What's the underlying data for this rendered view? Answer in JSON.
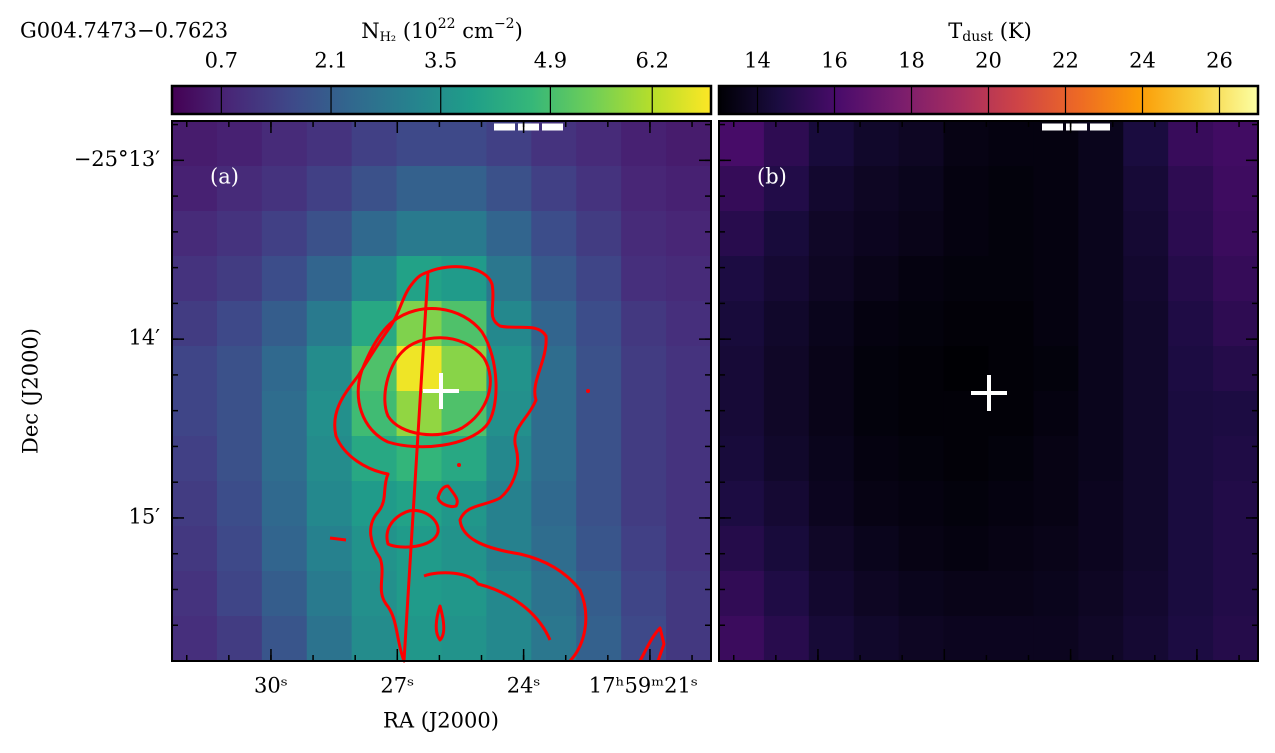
{
  "chart_data": [
    {
      "type": "heatmap",
      "title": "G004.7473−0.7623",
      "panel_label": "(a)",
      "colormap": "viridis",
      "colorbar": {
        "label_parts": [
          "N",
          "H₂",
          " (10",
          "22",
          " cm",
          "−2",
          ")"
        ],
        "clim": [
          0.07,
          6.95
        ],
        "ticks": [
          0.7,
          2.1,
          3.5,
          4.9,
          6.2
        ]
      },
      "xlabel": "RA (J2000)",
      "ylabel": "Dec (J2000)",
      "xlim": [
        32.35,
        19.55
      ],
      "xticks": [
        {
          "value": 30,
          "label": "30ˢ"
        },
        {
          "value": 27,
          "label": "27ˢ"
        },
        {
          "value": 24,
          "label": "24ˢ"
        },
        {
          "value": 21,
          "label": "17ʰ59ᵐ21ˢ"
        }
      ],
      "ylim": [
        15.8,
        12.78
      ],
      "yticks": [
        {
          "value": 13,
          "label": "−25°13′"
        },
        {
          "value": 14,
          "label": "14′"
        },
        {
          "value": 15,
          "label": "15′"
        }
      ],
      "values": [
        [
          0.6,
          0.7,
          0.9,
          1.1,
          1.4,
          1.6,
          1.6,
          1.4,
          1.1,
          0.9,
          0.7,
          0.6
        ],
        [
          0.7,
          0.9,
          1.1,
          1.4,
          1.8,
          2.2,
          2.2,
          1.8,
          1.4,
          1.1,
          0.8,
          0.7
        ],
        [
          0.9,
          1.1,
          1.4,
          1.8,
          2.4,
          2.9,
          2.9,
          2.3,
          1.7,
          1.3,
          0.9,
          0.8
        ],
        [
          1.1,
          1.3,
          1.7,
          2.3,
          3.2,
          4.0,
          3.8,
          2.8,
          2.0,
          1.5,
          1.0,
          0.9
        ],
        [
          1.3,
          1.6,
          2.1,
          2.9,
          4.2,
          5.6,
          5.0,
          3.3,
          2.3,
          1.7,
          1.2,
          1.0
        ],
        [
          1.5,
          1.8,
          2.4,
          3.4,
          5.0,
          6.8,
          5.7,
          3.6,
          2.5,
          1.8,
          1.3,
          1.1
        ],
        [
          1.5,
          1.8,
          2.5,
          3.5,
          4.8,
          5.8,
          5.0,
          3.5,
          2.5,
          1.8,
          1.3,
          1.1
        ],
        [
          1.4,
          1.8,
          2.5,
          3.4,
          4.2,
          4.6,
          4.2,
          3.3,
          2.5,
          1.8,
          1.3,
          1.1
        ],
        [
          1.3,
          1.7,
          2.4,
          3.3,
          3.8,
          4.0,
          3.7,
          3.1,
          2.4,
          1.8,
          1.3,
          1.1
        ],
        [
          1.2,
          1.6,
          2.3,
          3.1,
          3.6,
          3.8,
          3.6,
          3.1,
          2.5,
          1.9,
          1.4,
          1.1
        ],
        [
          1.1,
          1.5,
          2.1,
          2.9,
          3.5,
          3.8,
          3.7,
          3.3,
          2.7,
          2.1,
          1.5,
          1.2
        ],
        [
          1.0,
          1.3,
          1.9,
          2.7,
          3.4,
          3.7,
          3.6,
          3.3,
          2.8,
          2.2,
          1.6,
          1.2
        ]
      ]
    },
    {
      "type": "heatmap",
      "panel_label": "(b)",
      "colormap": "inferno",
      "colorbar": {
        "label_parts": [
          "T",
          "dust",
          " (K)"
        ],
        "clim": [
          13,
          27
        ],
        "ticks": [
          14,
          16,
          18,
          20,
          22,
          24,
          26
        ]
      },
      "xlim": [
        32.35,
        19.55
      ],
      "xticks": [
        30,
        27,
        24,
        21
      ],
      "ylim": [
        15.8,
        12.78
      ],
      "yticks": [
        13,
        14,
        15
      ],
      "show_tick_labels": false,
      "values": [
        [
          16.0,
          15.2,
          14.4,
          14.0,
          13.8,
          13.4,
          13.3,
          13.3,
          13.6,
          14.5,
          15.5,
          15.8
        ],
        [
          15.4,
          14.8,
          14.1,
          13.8,
          13.6,
          13.3,
          13.2,
          13.3,
          13.6,
          14.3,
          15.2,
          15.7
        ],
        [
          15.0,
          14.4,
          13.9,
          13.7,
          13.5,
          13.3,
          13.2,
          13.3,
          13.6,
          14.2,
          15.1,
          15.6
        ],
        [
          14.6,
          14.2,
          13.8,
          13.5,
          13.3,
          13.2,
          13.2,
          13.3,
          13.6,
          14.1,
          14.9,
          15.4
        ],
        [
          14.4,
          14.0,
          13.6,
          13.3,
          13.2,
          13.1,
          13.1,
          13.3,
          13.6,
          14.0,
          14.7,
          15.2
        ],
        [
          14.3,
          13.9,
          13.5,
          13.2,
          13.1,
          13.0,
          13.1,
          13.2,
          13.6,
          14.0,
          14.6,
          14.9
        ],
        [
          14.3,
          13.9,
          13.5,
          13.2,
          13.1,
          13.1,
          13.1,
          13.3,
          13.6,
          14.0,
          14.5,
          14.6
        ],
        [
          14.4,
          14.0,
          13.6,
          13.3,
          13.2,
          13.1,
          13.2,
          13.4,
          13.6,
          14.0,
          14.5,
          14.7
        ],
        [
          14.6,
          14.2,
          13.7,
          13.4,
          13.3,
          13.2,
          13.3,
          13.4,
          13.7,
          14.0,
          14.5,
          14.8
        ],
        [
          14.9,
          14.4,
          13.9,
          13.6,
          13.4,
          13.3,
          13.4,
          13.5,
          13.7,
          14.0,
          14.5,
          14.8
        ],
        [
          15.3,
          14.7,
          14.1,
          13.8,
          13.6,
          13.5,
          13.5,
          13.6,
          13.8,
          14.1,
          14.5,
          14.8
        ],
        [
          15.6,
          15.0,
          14.3,
          14.0,
          13.8,
          13.7,
          13.7,
          13.7,
          13.9,
          14.2,
          14.6,
          14.9
        ]
      ]
    }
  ]
}
